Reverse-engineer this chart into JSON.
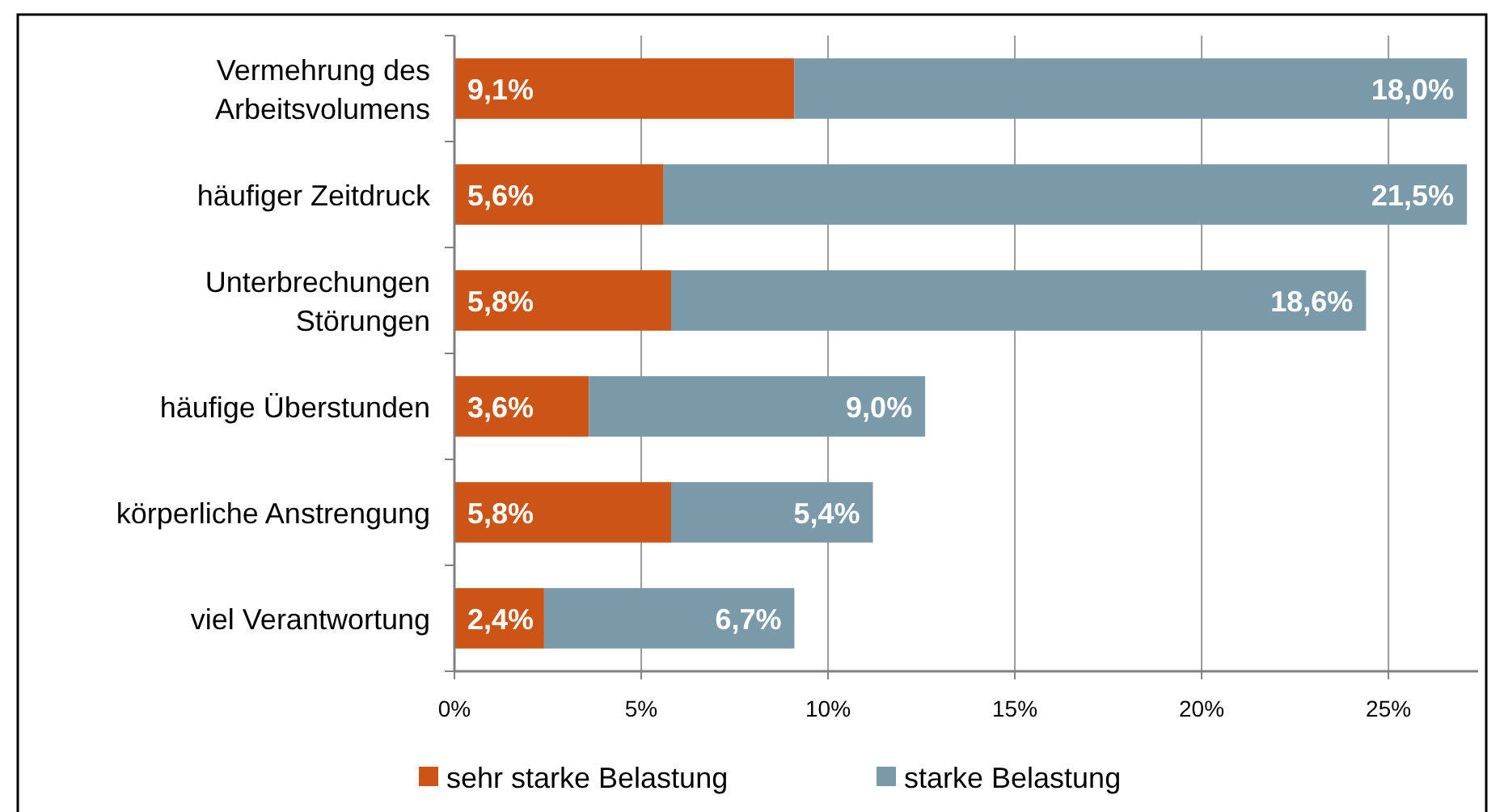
{
  "chart_data": {
    "type": "bar",
    "orientation": "horizontal",
    "stacked": true,
    "categories": [
      "Vermehrung des\nArbeitsvolumens",
      "häufiger Zeitdruck",
      "Unterbrechungen\nStörungen",
      "häufige Überstunden",
      "körperliche Anstrengung",
      "viel Verantwortung"
    ],
    "series": [
      {
        "name": "sehr starke Belastung",
        "color": "#cc5416",
        "values": [
          9.1,
          5.6,
          5.8,
          3.6,
          5.8,
          2.4
        ],
        "value_labels": [
          "9,1%",
          "5,6%",
          "5,8%",
          "3,6%",
          "5,8%",
          "2,4%"
        ]
      },
      {
        "name": "starke Belastung",
        "color": "#7a99a9",
        "values": [
          18.0,
          21.5,
          18.6,
          9.0,
          5.4,
          6.7
        ],
        "value_labels": [
          "18,0%",
          "21,5%",
          "18,6%",
          "9,0%",
          "5,4%",
          "6,7%"
        ]
      }
    ],
    "xlim": [
      0,
      27.4
    ],
    "xticks": [
      {
        "value": 0,
        "label": "0%"
      },
      {
        "value": 5,
        "label": "5%"
      },
      {
        "value": 10,
        "label": "10%"
      },
      {
        "value": 15,
        "label": "15%"
      },
      {
        "value": 20,
        "label": "20%"
      },
      {
        "value": 25,
        "label": "25%"
      }
    ],
    "grid": "x",
    "legend": "bottom"
  }
}
